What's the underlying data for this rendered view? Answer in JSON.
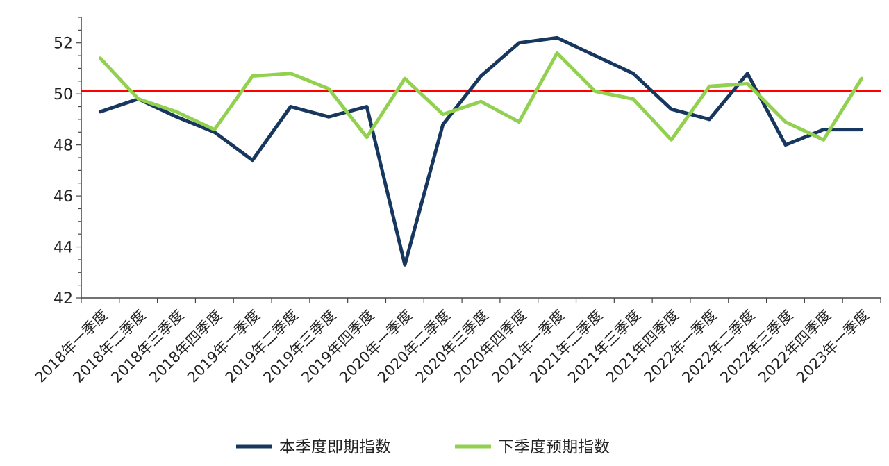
{
  "chart_data": {
    "type": "line",
    "title": "",
    "xlabel": "",
    "ylabel": "",
    "ylim": [
      42,
      53
    ],
    "yticks": [
      42,
      44,
      46,
      48,
      50,
      52
    ],
    "grid": false,
    "legend_position": "bottom-center",
    "categories": [
      "2018年一季度",
      "2018年二季度",
      "2018年三季度",
      "2018年四季度",
      "2019年一季度",
      "2019年二季度",
      "2019年三季度",
      "2019年四季度",
      "2020年一季度",
      "2020年二季度",
      "2020年三季度",
      "2020年四季度",
      "2021年一季度",
      "2021年二季度",
      "2021年三季度",
      "2021年四季度",
      "2022年一季度",
      "2022年二季度",
      "2022年三季度",
      "2022年四季度",
      "2023年一季度"
    ],
    "series": [
      {
        "name": "本季度即期指数",
        "color": "#17375e",
        "values": [
          49.3,
          49.8,
          49.1,
          48.5,
          47.4,
          49.5,
          49.1,
          49.5,
          43.3,
          48.8,
          50.7,
          52.0,
          52.2,
          51.5,
          50.8,
          49.4,
          49.0,
          50.8,
          48.0,
          48.6,
          48.6
        ]
      },
      {
        "name": "下季度预期指数",
        "color": "#92d050",
        "values": [
          51.4,
          49.8,
          49.3,
          48.6,
          50.7,
          50.8,
          50.2,
          48.3,
          50.6,
          49.2,
          49.7,
          48.9,
          51.6,
          50.1,
          49.8,
          48.2,
          50.3,
          50.4,
          48.9,
          48.2,
          50.6
        ]
      }
    ],
    "reference_line": {
      "value": 50.1,
      "color": "#ff0000"
    }
  }
}
